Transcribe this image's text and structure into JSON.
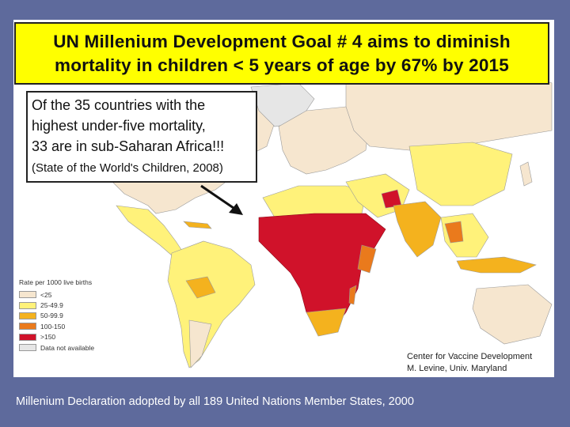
{
  "slide": {
    "title": "UN Millenium Development Goal # 4 aims to diminish\nmortality in children < 5 years of age by 67% by 2015",
    "callout": {
      "text": "Of the 35 countries with the\nhighest under-five mortality,\n33 are in sub-Saharan Africa!!!",
      "source": "(State of the World's Children, 2008)"
    },
    "credit": "Center for Vaccine Development\nM. Levine, Univ. Maryland",
    "footer": "Millenium Declaration adopted by all 189 United Nations Member States, 2000"
  },
  "legend": {
    "title": "Rate per 1000 live births",
    "items": [
      {
        "label": "<25",
        "color": "#f6e6cf"
      },
      {
        "label": "25-49.9",
        "color": "#fff27a"
      },
      {
        "label": "50-99.9",
        "color": "#f4b21e"
      },
      {
        "label": "100-150",
        "color": "#ea7a1c"
      },
      {
        "label": ">150",
        "color": "#d0122a"
      },
      {
        "label": "Data not available",
        "color": "#e6e6e6"
      }
    ]
  },
  "colors": {
    "background": "#5e6a9c",
    "title_bg": "#ffff00",
    "ocean": "#ffffff",
    "border_lines": "#9a9a9a"
  }
}
